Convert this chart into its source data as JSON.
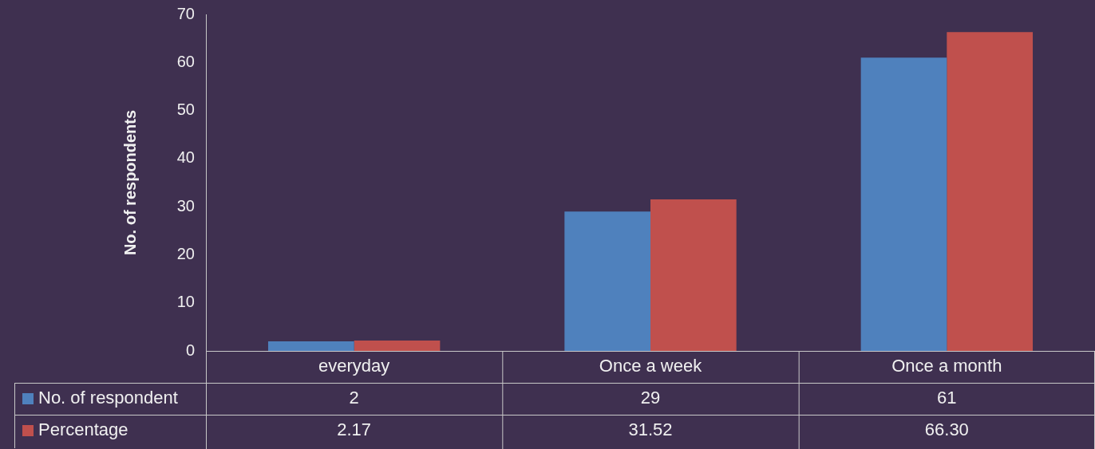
{
  "chart_data": {
    "type": "bar",
    "ylabel": "No. of respondents",
    "categories": [
      "everyday",
      "Once a week",
      "Once a month"
    ],
    "series": [
      {
        "name": "No. of respondent",
        "color": "#4f81bd",
        "values": [
          2,
          29,
          61
        ],
        "value_labels": [
          "2",
          "29",
          "61"
        ]
      },
      {
        "name": "Percentage",
        "color": "#c0504d",
        "values": [
          2.17,
          31.52,
          66.3
        ],
        "value_labels": [
          "2.17",
          "31.52",
          "66.30"
        ]
      }
    ],
    "ylim": [
      0,
      70
    ],
    "yticks": [
      0,
      10,
      20,
      30,
      40,
      50,
      60,
      70
    ],
    "grid": false,
    "legend": "bottom"
  }
}
